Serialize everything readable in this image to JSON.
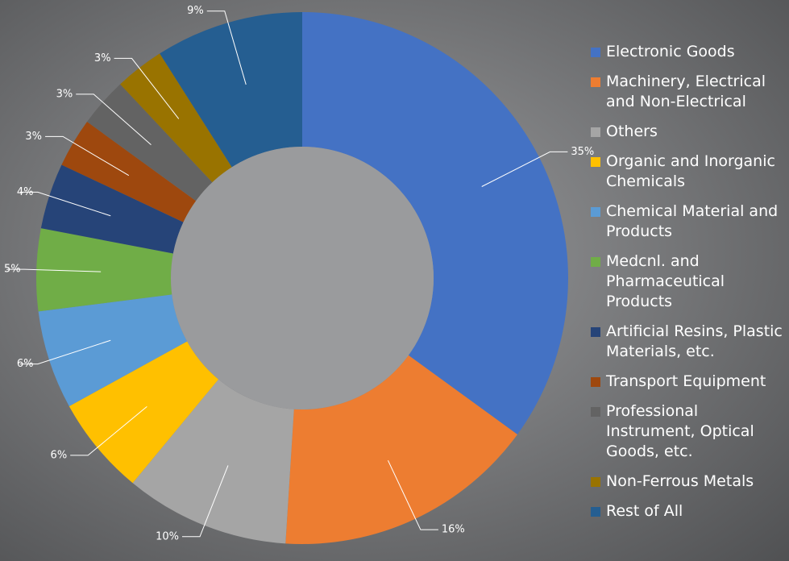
{
  "chart_data": {
    "type": "donut",
    "categories": [
      "Electronic Goods",
      "Machinery, Electrical and Non-Electrical",
      "Others",
      "Organic and Inorganic Chemicals",
      "Chemical Material and Products",
      "Medcnl. and Pharmaceutical Products",
      "Artificial Resins, Plastic Materials, etc.",
      "Transport Equipment",
      "Professional Instrument, Optical Goods, etc.",
      "Non-Ferrous Metals",
      "Rest of All"
    ],
    "values": [
      35,
      16,
      10,
      6,
      6,
      5,
      4,
      3,
      3,
      3,
      9
    ],
    "value_labels": [
      "35%",
      "16%",
      "10%",
      "6%",
      "6%",
      "5%",
      "4%",
      "3%",
      "3%",
      "3%",
      "9%"
    ],
    "colors": [
      "#4472c4",
      "#ed7d31",
      "#a5a5a5",
      "#ffc000",
      "#5b9bd5",
      "#70ad47",
      "#264478",
      "#9e480e",
      "#636363",
      "#997300",
      "#255e91"
    ],
    "legend": "right"
  }
}
